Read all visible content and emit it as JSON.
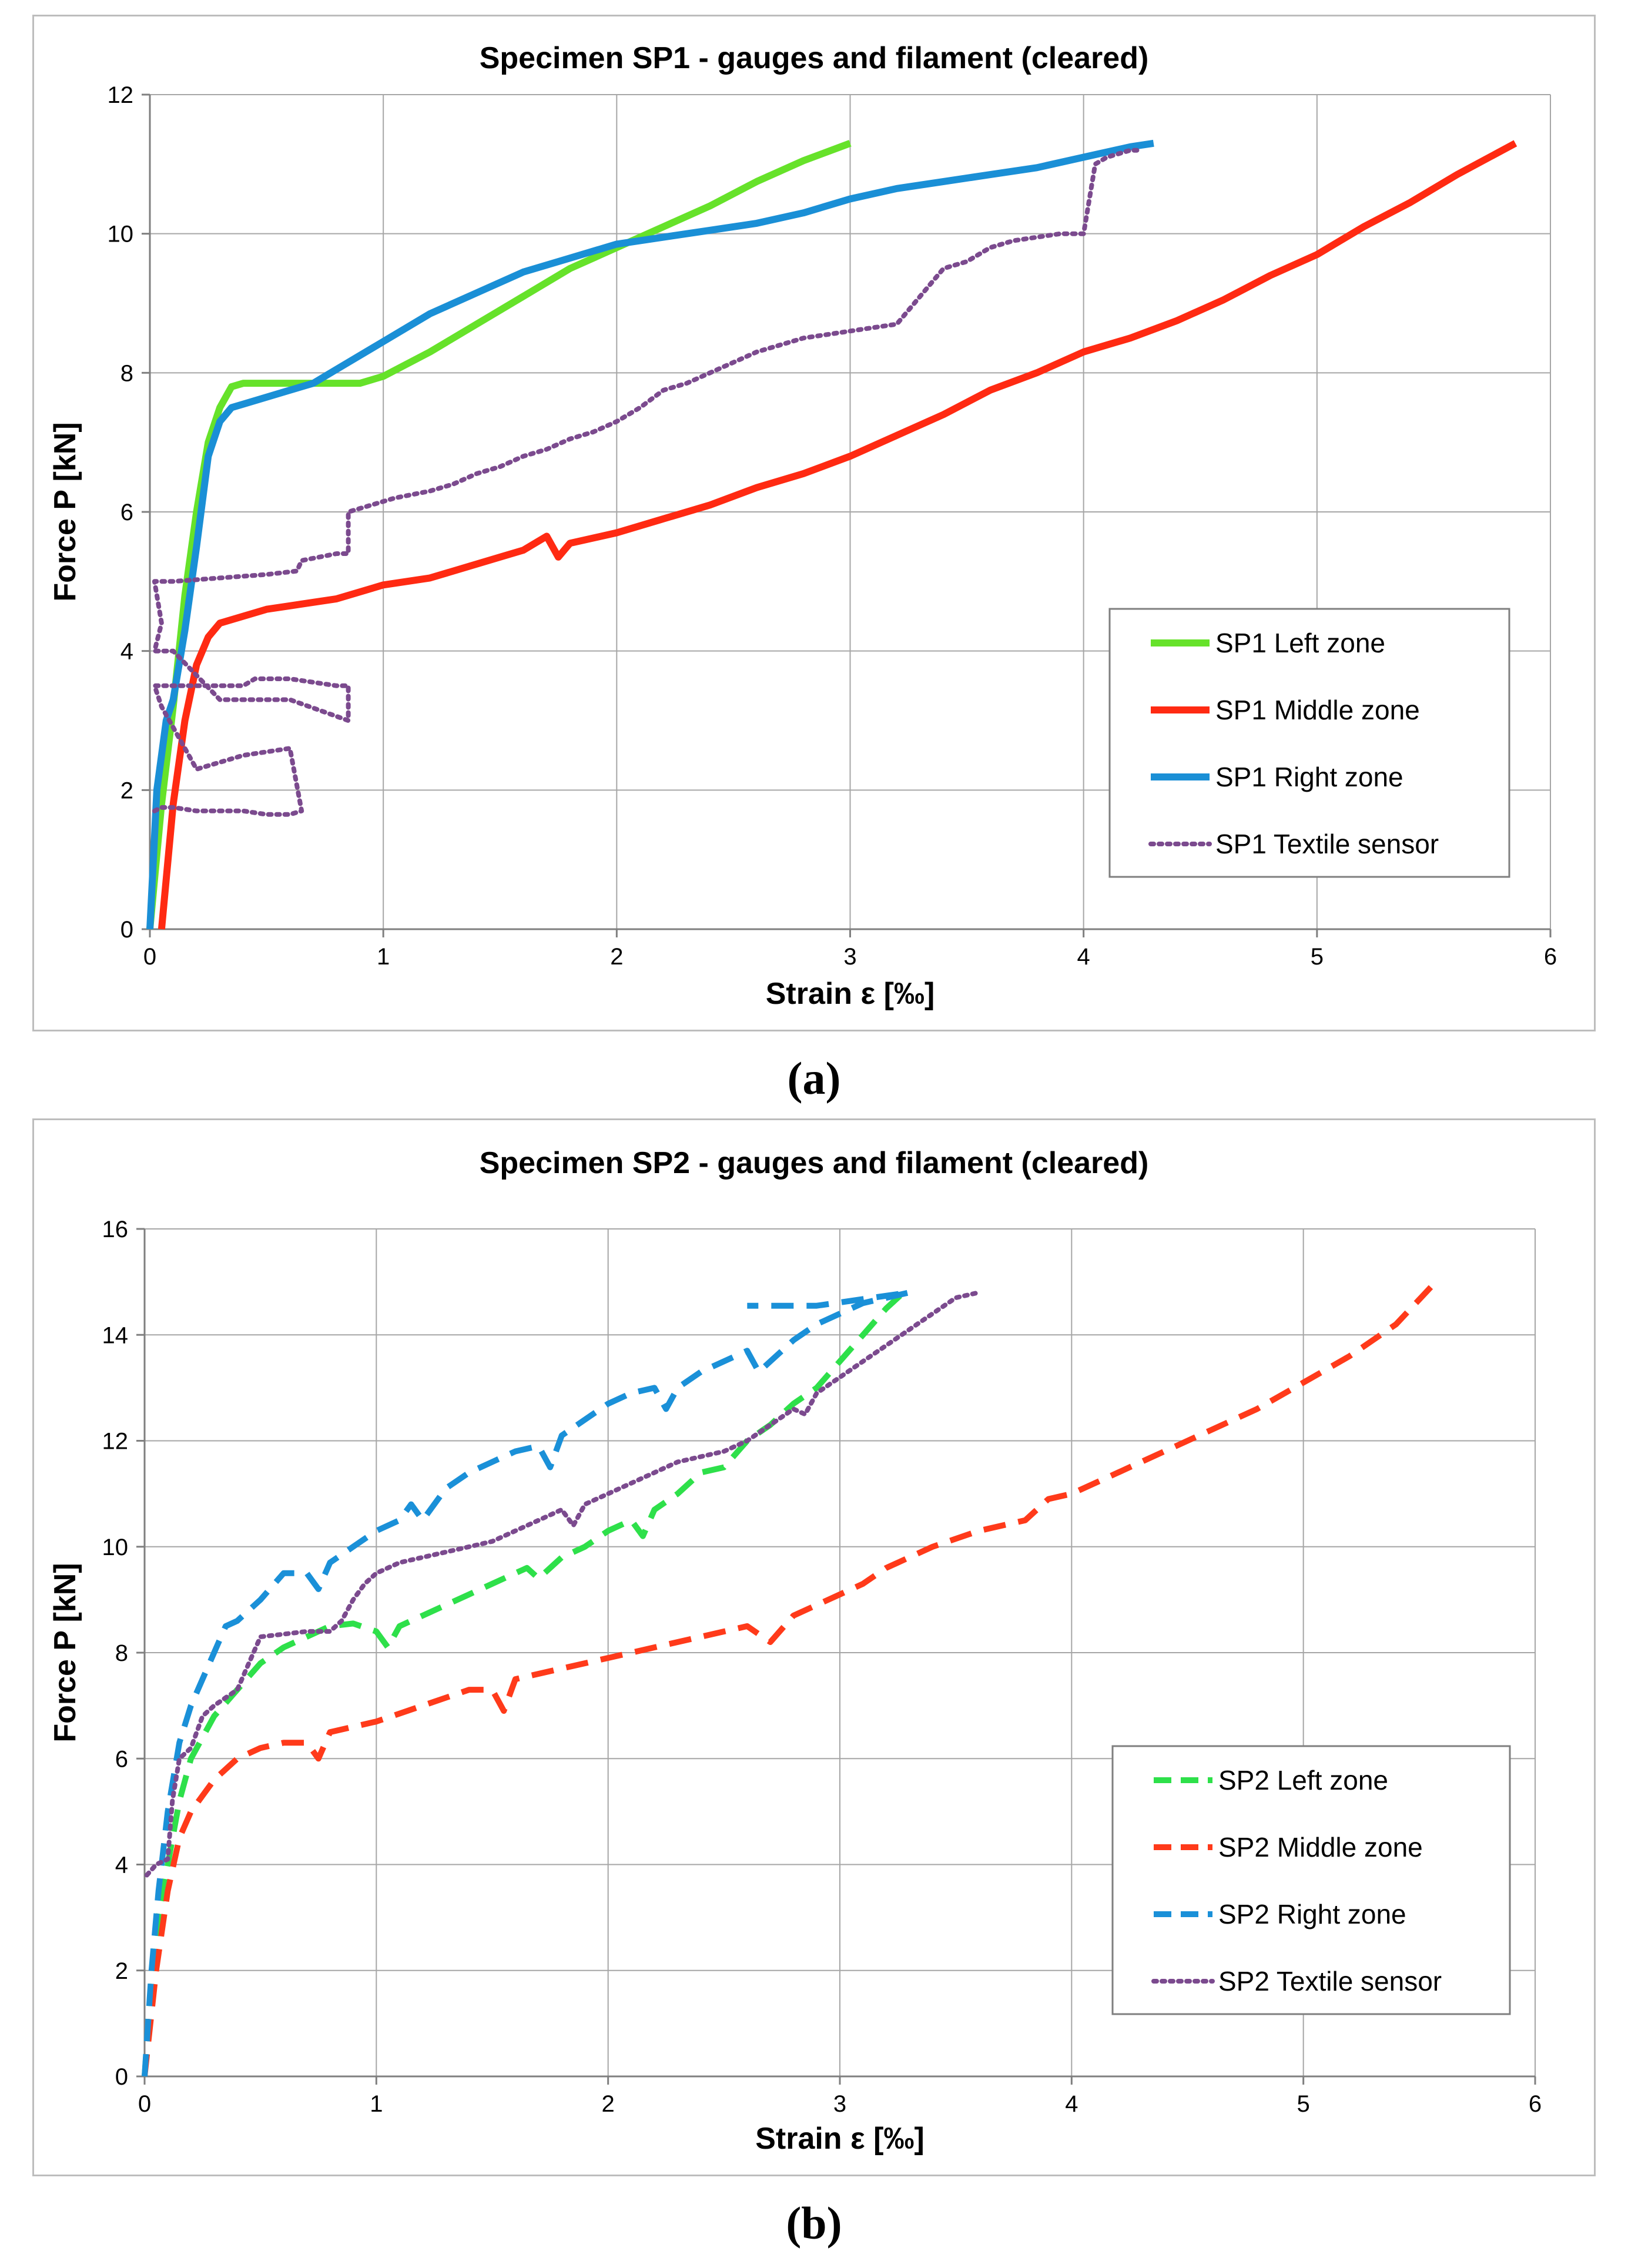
{
  "panel_labels": [
    "(a)",
    "(b)"
  ],
  "chart_data": [
    {
      "type": "line",
      "title": "Specimen SP1 - gauges and filament (cleared)",
      "xlabel": "Strain ε [‰]",
      "ylabel": "Force P [kN]",
      "xlim": [
        0,
        6
      ],
      "ylim": [
        0,
        12
      ],
      "xticks": [
        0,
        1,
        2,
        3,
        4,
        5,
        6
      ],
      "yticks": [
        0,
        2,
        4,
        6,
        8,
        10,
        12
      ],
      "grid": true,
      "legend_position": "right",
      "series": [
        {
          "name": "SP1 Left zone",
          "color": "#66e22a",
          "style": "solid",
          "x": [
            0,
            0.05,
            0.1,
            0.15,
            0.2,
            0.25,
            0.3,
            0.35,
            0.4,
            0.5,
            0.6,
            0.7,
            0.8,
            0.9,
            1.0,
            1.2,
            1.4,
            1.6,
            1.8,
            2.0,
            2.2,
            2.4,
            2.6,
            2.8,
            3.0
          ],
          "y": [
            0,
            1.8,
            3.2,
            4.8,
            6.0,
            7.0,
            7.5,
            7.8,
            7.85,
            7.85,
            7.85,
            7.85,
            7.85,
            7.85,
            7.95,
            8.3,
            8.7,
            9.1,
            9.5,
            9.8,
            10.1,
            10.4,
            10.75,
            11.05,
            11.3
          ]
        },
        {
          "name": "SP1 Middle zone",
          "color": "#ff2a12",
          "style": "solid",
          "x": [
            0.05,
            0.1,
            0.15,
            0.2,
            0.25,
            0.3,
            0.4,
            0.5,
            0.6,
            0.8,
            1.0,
            1.2,
            1.4,
            1.5,
            1.6,
            1.7,
            1.75,
            1.8,
            2.0,
            2.2,
            2.4,
            2.6,
            2.8,
            3.0,
            3.2,
            3.4,
            3.6,
            3.8,
            4.0,
            4.2,
            4.4,
            4.6,
            4.8,
            5.0,
            5.2,
            5.4,
            5.6,
            5.85
          ],
          "y": [
            0,
            1.8,
            3.0,
            3.8,
            4.2,
            4.4,
            4.5,
            4.6,
            4.65,
            4.75,
            4.95,
            5.05,
            5.25,
            5.35,
            5.45,
            5.65,
            5.35,
            5.55,
            5.7,
            5.9,
            6.1,
            6.35,
            6.55,
            6.8,
            7.1,
            7.4,
            7.75,
            8.0,
            8.3,
            8.5,
            8.75,
            9.05,
            9.4,
            9.7,
            10.1,
            10.45,
            10.85,
            11.3
          ]
        },
        {
          "name": "SP1 Right zone",
          "color": "#1a8fd6",
          "style": "solid",
          "x": [
            0,
            0.03,
            0.07,
            0.1,
            0.15,
            0.2,
            0.25,
            0.3,
            0.35,
            0.4,
            0.5,
            0.6,
            0.7,
            0.8,
            1.0,
            1.2,
            1.4,
            1.6,
            1.8,
            2.0,
            2.2,
            2.4,
            2.6,
            2.8,
            3.0,
            3.2,
            3.4,
            3.6,
            3.8,
            4.0,
            4.2,
            4.3
          ],
          "y": [
            0,
            2.0,
            3.0,
            3.3,
            4.3,
            5.5,
            6.8,
            7.3,
            7.5,
            7.55,
            7.65,
            7.75,
            7.85,
            8.05,
            8.45,
            8.85,
            9.15,
            9.45,
            9.65,
            9.85,
            9.95,
            10.05,
            10.15,
            10.3,
            10.5,
            10.65,
            10.75,
            10.85,
            10.95,
            11.1,
            11.25,
            11.3
          ]
        },
        {
          "name": "SP1 Textile sensor",
          "color": "#7b4a8e",
          "style": "dotted",
          "x": [
            0.02,
            0.05,
            0.1,
            0.2,
            0.3,
            0.4,
            0.5,
            0.6,
            0.65,
            0.6,
            0.4,
            0.2,
            0.05,
            0.02,
            0.05,
            0.2,
            0.4,
            0.45,
            0.6,
            0.7,
            0.8,
            0.85,
            0.85,
            0.6,
            0.5,
            0.3,
            0.1,
            0.02,
            0.05,
            0.02,
            0.1,
            0.3,
            0.5,
            0.63,
            0.65,
            0.8,
            0.85,
            0.85,
            0.9,
            1.0,
            1.05,
            1.2,
            1.3,
            1.4,
            1.5,
            1.6,
            1.7,
            1.8,
            1.9,
            2.0,
            2.1,
            2.2,
            2.3,
            2.4,
            2.5,
            2.6,
            2.7,
            2.8,
            2.9,
            3.0,
            3.1,
            3.2,
            3.3,
            3.4,
            3.5,
            3.6,
            3.7,
            3.8,
            3.9,
            4.0,
            4.05,
            4.1,
            4.2,
            4.25
          ],
          "y": [
            1.7,
            1.75,
            1.75,
            1.7,
            1.7,
            1.7,
            1.65,
            1.65,
            1.7,
            2.6,
            2.5,
            2.3,
            3.2,
            3.5,
            3.5,
            3.5,
            3.5,
            3.6,
            3.6,
            3.55,
            3.5,
            3.5,
            3.0,
            3.3,
            3.3,
            3.3,
            4.0,
            4.0,
            4.4,
            5.0,
            5.0,
            5.05,
            5.1,
            5.15,
            5.3,
            5.4,
            5.4,
            6.0,
            6.05,
            6.15,
            6.2,
            6.3,
            6.4,
            6.55,
            6.65,
            6.8,
            6.9,
            7.05,
            7.15,
            7.3,
            7.5,
            7.75,
            7.85,
            8.0,
            8.15,
            8.3,
            8.4,
            8.5,
            8.55,
            8.6,
            8.65,
            8.7,
            9.1,
            9.5,
            9.6,
            9.8,
            9.9,
            9.95,
            10.0,
            10.0,
            11.0,
            11.1,
            11.2,
            11.2
          ]
        }
      ]
    },
    {
      "type": "line",
      "title": "Specimen SP2 - gauges and filament (cleared)",
      "xlabel": "Strain ε [‰]",
      "ylabel": "Force P [kN]",
      "xlim": [
        0,
        6
      ],
      "ylim": [
        0,
        16
      ],
      "xticks": [
        0,
        1,
        2,
        3,
        4,
        5,
        6
      ],
      "yticks": [
        0,
        2,
        4,
        6,
        8,
        10,
        12,
        14,
        16
      ],
      "grid": true,
      "legend_position": "right",
      "series": [
        {
          "name": "SP2 Left zone",
          "color": "#2ee04a",
          "style": "dashed",
          "x": [
            0,
            0.03,
            0.06,
            0.1,
            0.15,
            0.2,
            0.3,
            0.4,
            0.5,
            0.6,
            0.7,
            0.8,
            0.9,
            1.0,
            1.05,
            1.1,
            1.2,
            1.3,
            1.4,
            1.5,
            1.6,
            1.65,
            1.7,
            1.8,
            1.9,
            2.0,
            2.1,
            2.15,
            2.2,
            2.3,
            2.4,
            2.5,
            2.6,
            2.7,
            2.8,
            2.9,
            3.0,
            3.1,
            3.2,
            3.3
          ],
          "y": [
            0,
            1.8,
            3.0,
            4.0,
            5.2,
            6.0,
            6.8,
            7.3,
            7.8,
            8.1,
            8.3,
            8.5,
            8.55,
            8.4,
            8.1,
            8.5,
            8.7,
            8.9,
            9.1,
            9.3,
            9.5,
            9.6,
            9.4,
            9.8,
            10.0,
            10.3,
            10.5,
            10.2,
            10.7,
            11.0,
            11.4,
            11.5,
            12.0,
            12.3,
            12.7,
            13.0,
            13.5,
            14.0,
            14.5,
            14.9
          ]
        },
        {
          "name": "SP2 Middle zone",
          "color": "#ff3a1a",
          "style": "dashed",
          "x": [
            0,
            0.05,
            0.1,
            0.15,
            0.2,
            0.3,
            0.4,
            0.5,
            0.6,
            0.7,
            0.75,
            0.8,
            1.0,
            1.2,
            1.4,
            1.5,
            1.55,
            1.6,
            1.8,
            2.0,
            2.2,
            2.4,
            2.6,
            2.7,
            2.8,
            2.9,
            3.0,
            3.1,
            3.2,
            3.4,
            3.6,
            3.8,
            3.9,
            4.0,
            4.2,
            4.4,
            4.6,
            4.8,
            5.0,
            5.2,
            5.4,
            5.55
          ],
          "y": [
            0,
            2.0,
            3.5,
            4.5,
            5.0,
            5.6,
            6.0,
            6.2,
            6.3,
            6.3,
            6.0,
            6.5,
            6.7,
            7.0,
            7.3,
            7.3,
            6.9,
            7.5,
            7.7,
            7.9,
            8.1,
            8.3,
            8.5,
            8.2,
            8.7,
            8.9,
            9.1,
            9.3,
            9.6,
            10.0,
            10.3,
            10.5,
            10.9,
            11.0,
            11.4,
            11.8,
            12.2,
            12.6,
            13.1,
            13.6,
            14.2,
            14.9
          ]
        },
        {
          "name": "SP2 Right zone",
          "color": "#1a90d8",
          "style": "dashed",
          "x": [
            0,
            0.03,
            0.06,
            0.1,
            0.15,
            0.2,
            0.3,
            0.35,
            0.4,
            0.5,
            0.6,
            0.7,
            0.75,
            0.8,
            0.9,
            1.0,
            1.1,
            1.15,
            1.2,
            1.3,
            1.4,
            1.5,
            1.6,
            1.7,
            1.75,
            1.8,
            1.9,
            2.0,
            2.1,
            2.2,
            2.25,
            2.3,
            2.4,
            2.5,
            2.6,
            2.65,
            2.7,
            2.8,
            2.9,
            3.0,
            3.1,
            3.2,
            3.3,
            2.9,
            2.6
          ],
          "y": [
            0,
            2.0,
            3.5,
            5.0,
            6.3,
            7.0,
            8.0,
            8.5,
            8.6,
            9.0,
            9.5,
            9.5,
            9.2,
            9.7,
            10.0,
            10.3,
            10.5,
            10.8,
            10.5,
            11.1,
            11.4,
            11.6,
            11.8,
            11.9,
            11.5,
            12.1,
            12.4,
            12.7,
            12.9,
            13.0,
            12.6,
            13.0,
            13.3,
            13.5,
            13.7,
            13.3,
            13.5,
            13.9,
            14.2,
            14.4,
            14.6,
            14.7,
            14.8,
            14.55,
            14.55
          ]
        },
        {
          "name": "SP2 Textile sensor",
          "color": "#7b4a8e",
          "style": "dotted",
          "x": [
            0.01,
            0.05,
            0.1,
            0.12,
            0.15,
            0.2,
            0.25,
            0.3,
            0.4,
            0.45,
            0.5,
            0.6,
            0.7,
            0.8,
            0.85,
            0.9,
            0.95,
            1.0,
            1.1,
            1.2,
            1.3,
            1.4,
            1.5,
            1.6,
            1.7,
            1.8,
            1.85,
            1.9,
            2.0,
            2.1,
            2.2,
            2.3,
            2.4,
            2.5,
            2.6,
            2.7,
            2.8,
            2.85,
            2.9,
            3.0,
            3.1,
            3.2,
            3.3,
            3.4,
            3.5,
            3.6
          ],
          "y": [
            3.8,
            4.0,
            4.1,
            5.2,
            6.0,
            6.2,
            6.8,
            7.0,
            7.3,
            7.8,
            8.3,
            8.35,
            8.4,
            8.4,
            8.6,
            9.0,
            9.3,
            9.5,
            9.7,
            9.8,
            9.9,
            10.0,
            10.1,
            10.3,
            10.5,
            10.7,
            10.4,
            10.8,
            11.0,
            11.2,
            11.4,
            11.6,
            11.7,
            11.8,
            12.0,
            12.3,
            12.6,
            12.5,
            12.9,
            13.2,
            13.5,
            13.8,
            14.1,
            14.4,
            14.7,
            14.8
          ]
        }
      ]
    }
  ]
}
